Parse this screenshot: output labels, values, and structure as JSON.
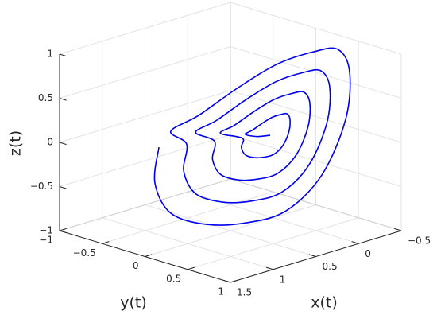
{
  "chart_data": {
    "type": "line3d",
    "xlabel": "x(t)",
    "ylabel": "y(t)",
    "zlabel": "z(t)",
    "xlim": [
      -0.5,
      1.5
    ],
    "ylim": [
      -1,
      1
    ],
    "zlim": [
      -1,
      1
    ],
    "xticks": [
      {
        "value": -0.5,
        "label": "−0.5"
      },
      0,
      0.5,
      1,
      1.5
    ],
    "yticks": [
      {
        "value": -1,
        "label": "−1"
      },
      {
        "value": -0.5,
        "label": "−0.5"
      },
      0,
      0.5,
      1
    ],
    "zticks": [
      {
        "value": -1,
        "label": "−1"
      },
      {
        "value": -0.5,
        "label": "−0.5"
      },
      0,
      0.5,
      1
    ],
    "grid": true,
    "series": [
      {
        "color": "#0000ee",
        "x": [
          0.957,
          0.984,
          0.878,
          0.639,
          0.374,
          0.109,
          -0.13,
          -0.289,
          -0.315,
          -0.236,
          -0.077,
          0.162,
          0.427,
          0.692,
          0.878,
          0.772,
          0.792,
          0.712,
          0.533,
          0.334,
          0.135,
          -0.044,
          -0.163,
          -0.183,
          -0.123,
          -0.004,
          0.175,
          0.374,
          0.573,
          0.712,
          0.586,
          0.6,
          0.547,
          0.427,
          0.295,
          0.162,
          0.042,
          -0.037,
          -0.05,
          -0.011,
          0.069,
          0.188,
          0.321,
          0.454,
          0.547,
          0.401,
          0.407,
          0.381,
          0.321,
          0.255,
          0.189,
          0.129,
          0.089,
          0.083,
          0.102,
          0.142,
          0.202,
          0.268,
          0.334,
          0.381,
          0.3,
          0.215
        ],
        "y": [
          -0.38,
          -0.4,
          -0.32,
          -0.14,
          0.06,
          0.26,
          0.44,
          0.56,
          0.58,
          0.52,
          0.4,
          0.22,
          0.02,
          -0.18,
          -0.32,
          -0.24,
          -0.255,
          -0.195,
          -0.06,
          0.09,
          0.24,
          0.375,
          0.465,
          0.48,
          0.435,
          0.345,
          0.21,
          0.06,
          -0.09,
          -0.195,
          -0.1,
          -0.11,
          -0.07,
          0.02,
          0.12,
          0.22,
          0.31,
          0.37,
          0.38,
          0.35,
          0.29,
          0.2,
          0.1,
          0,
          -0.07,
          0.04,
          0.035,
          0.055,
          0.1,
          0.15,
          0.2,
          0.245,
          0.275,
          0.28,
          0.265,
          0.235,
          0.19,
          0.14,
          0.09,
          0.055,
          0.11,
          0.18
        ],
        "z": [
          -0.032,
          -0.435,
          -0.785,
          -0.929,
          -0.93,
          -0.814,
          -0.425,
          0.194,
          0.733,
          0.991,
          0.975,
          0.857,
          0.606,
          0.309,
          0.143,
          -0.012,
          -0.314,
          -0.576,
          -0.684,
          -0.685,
          -0.598,
          -0.306,
          0.158,
          0.562,
          0.756,
          0.744,
          0.655,
          0.467,
          0.244,
          0.12,
          0.009,
          -0.193,
          -0.368,
          -0.44,
          -0.44,
          -0.382,
          -0.188,
          0.122,
          0.392,
          0.521,
          0.513,
          0.454,
          0.328,
          0.18,
          0.097,
          0.03,
          -0.071,
          -0.159,
          -0.195,
          -0.195,
          -0.166,
          -0.069,
          0.086,
          0.221,
          0.285,
          0.281,
          0.252,
          0.189,
          0.115,
          0.073,
          0.04,
          0.05
        ]
      }
    ]
  }
}
